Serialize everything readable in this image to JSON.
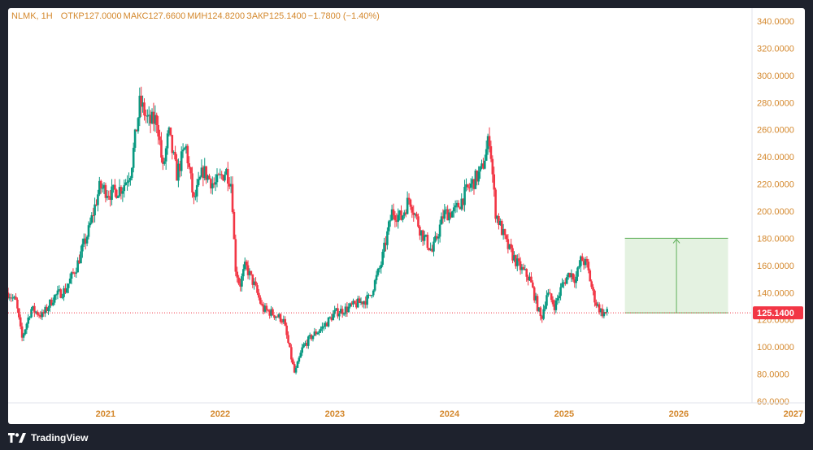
{
  "header": {
    "symbol": "NLMK, 1H",
    "open": "ОТКР127.0000",
    "high": "МАКС127.6600",
    "low": "МИН124.8200",
    "close": "ЗАКР125.1400",
    "change": "−1.7800 (−1.40%)"
  },
  "footer": {
    "brand": "TradingView",
    "logo_icon": "tradingview-logo-icon"
  },
  "colors": {
    "up": "#089981",
    "down": "#f23645",
    "label": "#d4882d",
    "price_tag": "#f23645",
    "range_fill": "#e4f2e1",
    "range_stroke": "#5fb05a"
  },
  "chart_data": {
    "type": "candlestick",
    "symbol": "NLMK",
    "interval": "1H",
    "y_axis": {
      "min": 60,
      "max": 340,
      "ticks": [
        "60.0000",
        "80.0000",
        "100.0000",
        "120.0000",
        "140.0000",
        "160.0000",
        "180.0000",
        "200.0000",
        "220.0000",
        "240.0000",
        "260.0000",
        "280.0000",
        "300.0000",
        "320.0000",
        "340.0000"
      ]
    },
    "x_axis": {
      "start": 2020.15,
      "end": 2027.1,
      "ticks": [
        {
          "value": 2021,
          "label": "2021"
        },
        {
          "value": 2022,
          "label": "2022"
        },
        {
          "value": 2023,
          "label": "2023"
        },
        {
          "value": 2024,
          "label": "2024"
        },
        {
          "value": 2025,
          "label": "2025"
        },
        {
          "value": 2026,
          "label": "2026"
        },
        {
          "value": 2027,
          "label": "2027"
        }
      ]
    },
    "price_path": [
      [
        2020.15,
        140
      ],
      [
        2020.22,
        133
      ],
      [
        2020.27,
        106
      ],
      [
        2020.35,
        128
      ],
      [
        2020.45,
        123
      ],
      [
        2020.55,
        137
      ],
      [
        2020.65,
        142
      ],
      [
        2020.75,
        160
      ],
      [
        2020.85,
        185
      ],
      [
        2020.95,
        218
      ],
      [
        2021.05,
        213
      ],
      [
        2021.15,
        218
      ],
      [
        2021.22,
        230
      ],
      [
        2021.3,
        280
      ],
      [
        2021.38,
        265
      ],
      [
        2021.45,
        268
      ],
      [
        2021.5,
        230
      ],
      [
        2021.55,
        258
      ],
      [
        2021.62,
        227
      ],
      [
        2021.7,
        248
      ],
      [
        2021.77,
        207
      ],
      [
        2021.85,
        230
      ],
      [
        2021.95,
        219
      ],
      [
        2022.05,
        230
      ],
      [
        2022.1,
        220
      ],
      [
        2022.13,
        160
      ],
      [
        2022.17,
        145
      ],
      [
        2022.22,
        160
      ],
      [
        2022.3,
        145
      ],
      [
        2022.37,
        128
      ],
      [
        2022.45,
        125
      ],
      [
        2022.55,
        120
      ],
      [
        2022.65,
        80
      ],
      [
        2022.72,
        100
      ],
      [
        2022.8,
        108
      ],
      [
        2022.9,
        115
      ],
      [
        2023.0,
        125
      ],
      [
        2023.1,
        128
      ],
      [
        2023.2,
        132
      ],
      [
        2023.3,
        136
      ],
      [
        2023.4,
        160
      ],
      [
        2023.5,
        200
      ],
      [
        2023.58,
        195
      ],
      [
        2023.65,
        210
      ],
      [
        2023.75,
        185
      ],
      [
        2023.85,
        170
      ],
      [
        2023.95,
        198
      ],
      [
        2024.05,
        200
      ],
      [
        2024.15,
        215
      ],
      [
        2024.28,
        230
      ],
      [
        2024.35,
        255
      ],
      [
        2024.4,
        200
      ],
      [
        2024.5,
        175
      ],
      [
        2024.6,
        160
      ],
      [
        2024.7,
        150
      ],
      [
        2024.8,
        120
      ],
      [
        2024.85,
        140
      ],
      [
        2024.92,
        130
      ],
      [
        2024.98,
        145
      ],
      [
        2025.05,
        155
      ],
      [
        2025.1,
        150
      ],
      [
        2025.15,
        165
      ],
      [
        2025.2,
        160
      ],
      [
        2025.25,
        140
      ],
      [
        2025.28,
        132
      ],
      [
        2025.33,
        125.14
      ]
    ],
    "last_price": 125.14,
    "last_price_label": "125.1400",
    "last_x": 2025.38,
    "range_box": {
      "x_start": 2025.53,
      "x_end": 2026.43,
      "y_start": 125.14,
      "y_end": 180
    }
  }
}
